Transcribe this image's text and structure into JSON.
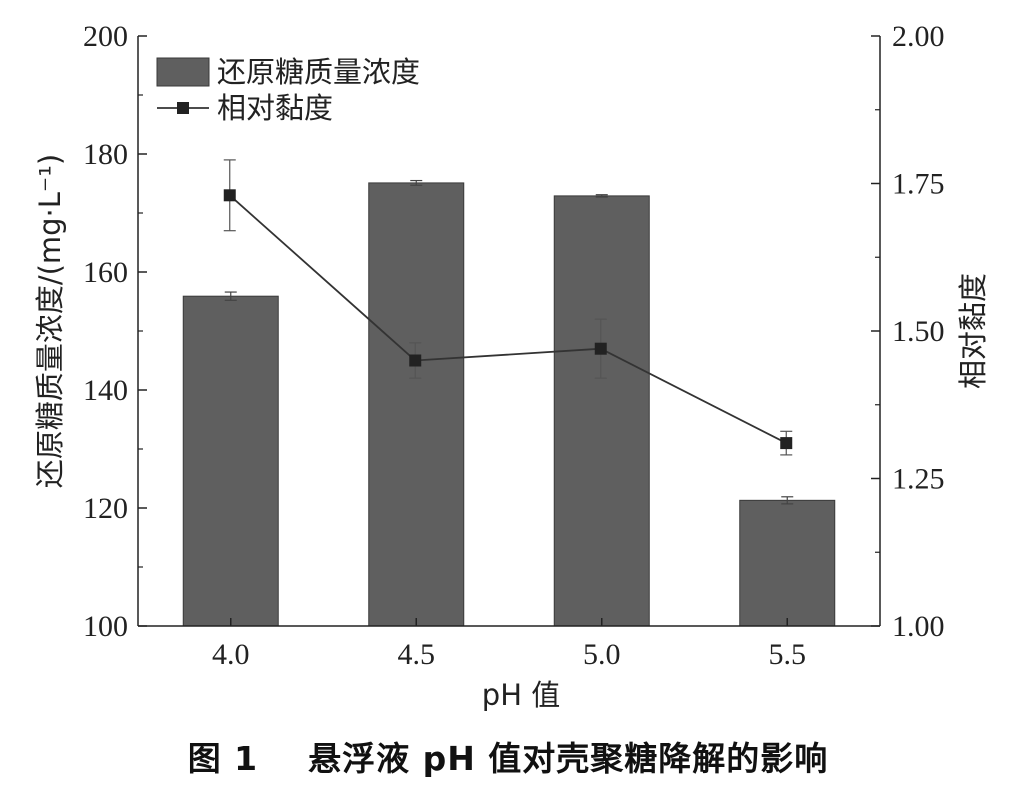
{
  "chart_data": {
    "type": "bar",
    "categories": [
      "4.0",
      "4.5",
      "5.0",
      "5.5"
    ],
    "xlabel": "pH 值",
    "left_axis": {
      "label": "还原糖质量浓度/(mg·L⁻¹)",
      "ylim": [
        100,
        200
      ],
      "ticks": [
        "100",
        "120",
        "140",
        "160",
        "180",
        "200"
      ]
    },
    "right_axis": {
      "label": "相对黏度",
      "ylim": [
        1.0,
        2.0
      ],
      "ticks": [
        "1.00",
        "1.25",
        "1.50",
        "1.75",
        "2.00"
      ]
    },
    "series": [
      {
        "name": "还原糖质量浓度",
        "kind": "bar",
        "axis": "left",
        "values": [
          155.9,
          175.1,
          172.9,
          121.3
        ],
        "errors": [
          0.7,
          0.4,
          0.2,
          0.6
        ],
        "color": "#5f5f5f"
      },
      {
        "name": "相对黏度",
        "kind": "line",
        "axis": "right",
        "values": [
          1.73,
          1.45,
          1.47,
          1.31
        ],
        "errors": [
          0.06,
          0.03,
          0.05,
          0.02
        ],
        "color": "#333333"
      }
    ],
    "legend_position": "top-left",
    "grid": false
  },
  "caption": "图 1    悬浮液 pH 值对壳聚糖降解的影响"
}
